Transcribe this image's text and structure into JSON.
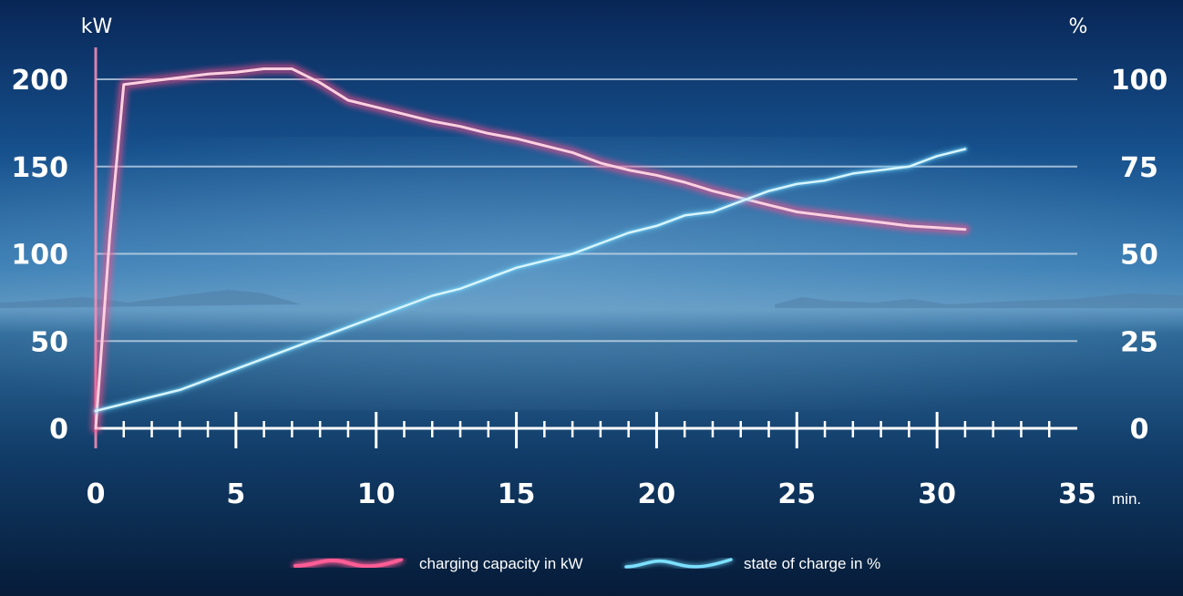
{
  "chart_data": {
    "type": "line",
    "left_axis_unit": "kW",
    "right_axis_unit": "%",
    "x_unit": "min.",
    "xlim": [
      0,
      35
    ],
    "x_ticks": [
      0,
      5,
      10,
      15,
      20,
      25,
      30,
      35
    ],
    "y_left_lim": [
      0,
      200
    ],
    "y_left_ticks": [
      0,
      50,
      100,
      150,
      200
    ],
    "y_right_lim": [
      0,
      100
    ],
    "y_right_ticks": [
      0,
      25,
      50,
      75,
      100
    ],
    "grid": true,
    "legend_placement": "bottom-center",
    "series": [
      {
        "name": "charging capacity in kW",
        "axis": "left",
        "color": "#ff4f8b",
        "x": [
          0,
          0.5,
          1,
          2,
          3,
          4,
          5,
          6,
          7,
          8,
          9,
          10,
          11,
          12,
          13,
          14,
          15,
          16,
          17,
          18,
          19,
          20,
          21,
          22,
          23,
          24,
          25,
          26,
          27,
          28,
          29,
          30,
          31
        ],
        "y": [
          0,
          110,
          197,
          199,
          201,
          203,
          204,
          206,
          206,
          198,
          188,
          184,
          180,
          176,
          173,
          169,
          166,
          162,
          158,
          152,
          148,
          145,
          141,
          136,
          132,
          128,
          124,
          122,
          120,
          118,
          116,
          115,
          114
        ]
      },
      {
        "name": "state of charge in %",
        "axis": "right",
        "color": "#6fd8ff",
        "x": [
          0,
          1,
          2,
          3,
          4,
          5,
          6,
          7,
          8,
          9,
          10,
          11,
          12,
          13,
          14,
          15,
          16,
          17,
          18,
          19,
          20,
          21,
          22,
          23,
          24,
          25,
          26,
          27,
          28,
          29,
          30,
          31
        ],
        "y": [
          5,
          7,
          9,
          11,
          14,
          17,
          20,
          23,
          26,
          29,
          32,
          35,
          38,
          40,
          43,
          46,
          48,
          50,
          53,
          56,
          58,
          61,
          62,
          65,
          68,
          70,
          71,
          73,
          74,
          75,
          78,
          80
        ]
      }
    ]
  }
}
